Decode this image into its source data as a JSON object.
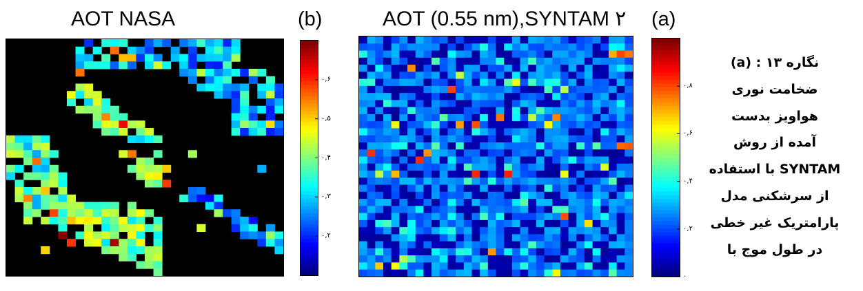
{
  "chart_data": [
    {
      "type": "heatmap",
      "title": "AOT NASA",
      "panel_label": "(b)",
      "grid": {
        "rows": 32,
        "cols": 32
      },
      "colorbar": {
        "colormap": "jet",
        "tick_labels": [
          "۰,۲",
          "۰,۳",
          "۰,۴",
          "۰,۵",
          "۰,۶"
        ],
        "tick_values": [
          0.2,
          0.3,
          0.4,
          0.5,
          0.6
        ],
        "range": [
          0.1,
          0.7
        ]
      },
      "no_data_color": "#000000",
      "clusters": [
        {
          "area": "top-right plume",
          "typical_aot": 0.28
        },
        {
          "area": "upper-center band",
          "typical_aot": 0.38
        },
        {
          "area": "center streak",
          "typical_aot": 0.42
        },
        {
          "area": "left plume",
          "typical_aot": 0.36
        },
        {
          "area": "bottom-center cluster",
          "typical_aot": 0.4
        },
        {
          "area": "bottom-right streak",
          "typical_aot": 0.26
        }
      ]
    },
    {
      "type": "heatmap",
      "title": "AOT (0.55 nm),SYNTAM ۲",
      "panel_label": "(a)",
      "grid": {
        "rows": 34,
        "cols": 34
      },
      "colorbar": {
        "colormap": "jet",
        "tick_labels": [
          "۰",
          "۰,۲",
          "۰,۴",
          "۰,۶",
          "۰,۸"
        ],
        "tick_values": [
          0.0,
          0.2,
          0.4,
          0.6,
          0.8
        ],
        "range": [
          0.0,
          1.0
        ]
      },
      "typical_aot": 0.25
    }
  ],
  "caption": {
    "lines": [
      "نگاره ۱۳ : (a)",
      "ضخامت نوری",
      "هواویز بدست",
      "آمده از روش",
      "SYNTAM با استفاده",
      "از سرشکنی مدل",
      "پارامتریک غیر خطی",
      "در طول موج با"
    ]
  }
}
